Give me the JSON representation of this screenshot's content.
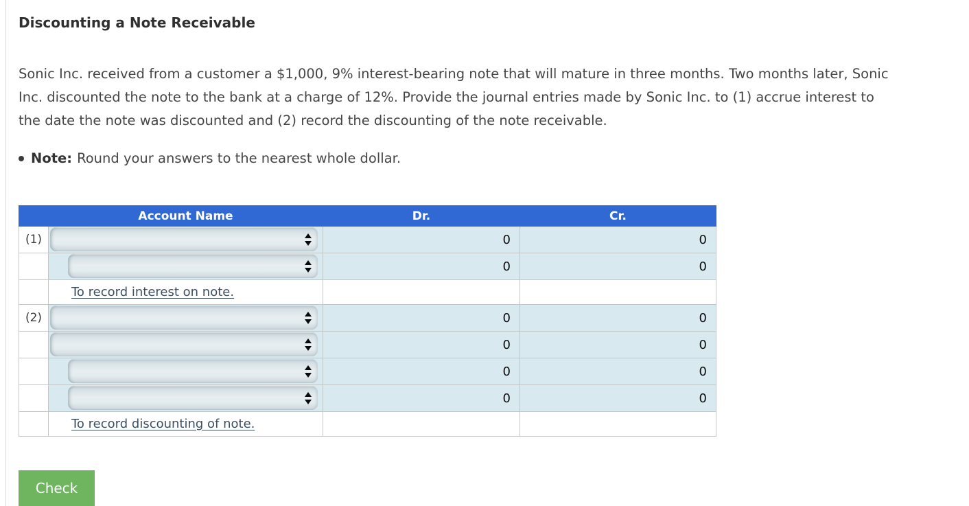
{
  "page": {
    "title": "Discounting a Note Receivable",
    "problem_text": "Sonic Inc. received from a customer a $1,000, 9% interest-bearing note that will mature in three months. Two months later, Sonic Inc. discounted the note to the bank at a charge of 12%. Provide the journal entries made by Sonic Inc. to (1) accrue interest to the date the note was discounted and (2) record the discounting of the note receivable.",
    "note_label": "Note:",
    "note_text": "Round your answers to the nearest whole dollar."
  },
  "table": {
    "headers": {
      "label": "",
      "account": "Account Name",
      "dr": "Dr.",
      "cr": "Cr."
    },
    "rows": [
      {
        "label": "(1)",
        "type": "select",
        "indent": false,
        "dr": "0",
        "cr": "0"
      },
      {
        "label": "",
        "type": "select",
        "indent": true,
        "dr": "0",
        "cr": "0"
      },
      {
        "label": "",
        "type": "caption",
        "caption": "To record interest on note."
      },
      {
        "label": "(2)",
        "type": "select",
        "indent": false,
        "dr": "0",
        "cr": "0"
      },
      {
        "label": "",
        "type": "select",
        "indent": false,
        "dr": "0",
        "cr": "0"
      },
      {
        "label": "",
        "type": "select",
        "indent": true,
        "dr": "0",
        "cr": "0"
      },
      {
        "label": "",
        "type": "select",
        "indent": true,
        "dr": "0",
        "cr": "0"
      },
      {
        "label": "",
        "type": "caption",
        "caption": "To record discounting of note."
      }
    ]
  },
  "actions": {
    "check_label": "Check"
  },
  "colors": {
    "header_blue": "#3069d3",
    "cell_light_blue": "#d8e9f0",
    "grid_border": "#c2c6c8",
    "check_green": "#6fb55f",
    "caption_text": "#3d4e61"
  }
}
